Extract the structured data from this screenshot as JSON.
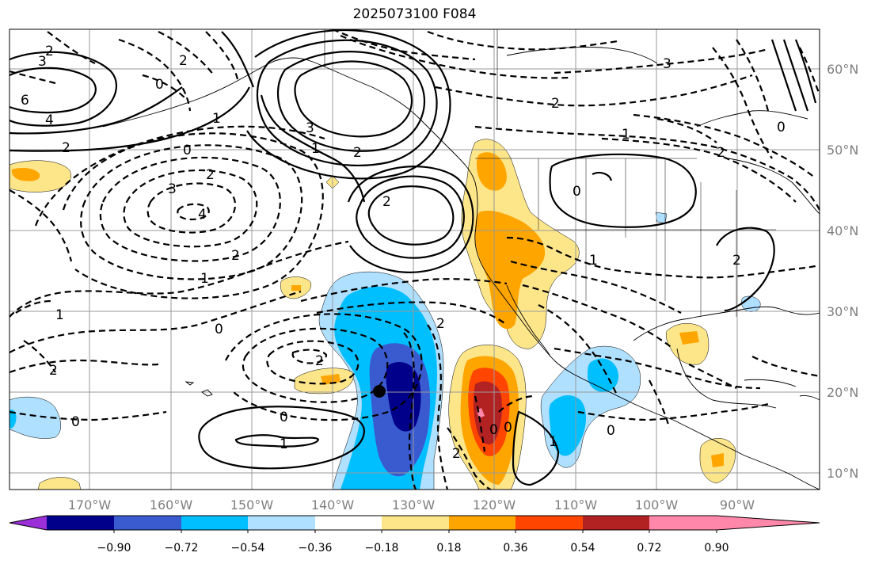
{
  "title": "2025073100 F084",
  "map": {
    "lon_labels": [
      "170°W",
      "160°W",
      "150°W",
      "140°W",
      "130°W",
      "120°W",
      "110°W",
      "100°W",
      "90°W"
    ],
    "lat_labels": [
      "60°N",
      "50°N",
      "40°N",
      "30°N",
      "20°N",
      "10°N"
    ],
    "contour_labels": [
      "3",
      "2",
      "6",
      "4",
      "0",
      "2",
      "1",
      "2",
      "3",
      "2",
      "1",
      "0",
      "2",
      "2",
      "3",
      "4",
      "2",
      "1",
      "1",
      "0",
      "2",
      "2",
      "0",
      "1",
      "2",
      "2",
      "0",
      "0",
      "1",
      "0",
      "1",
      "2",
      "0",
      "0",
      "3",
      "2",
      "0",
      "2",
      "1"
    ]
  },
  "colorbar": {
    "tick_labels": [
      "−0.90",
      "−0.72",
      "−0.54",
      "−0.36",
      "−0.18",
      "0.18",
      "0.36",
      "0.54",
      "0.72",
      "0.90"
    ],
    "colors": [
      "#9b30d9",
      "#00008b",
      "#3a5bd0",
      "#00bfff",
      "#b0e0ff",
      "#ffffff",
      "#fde68a",
      "#ffa500",
      "#ff4500",
      "#b22222",
      "#ff88aa"
    ]
  }
}
